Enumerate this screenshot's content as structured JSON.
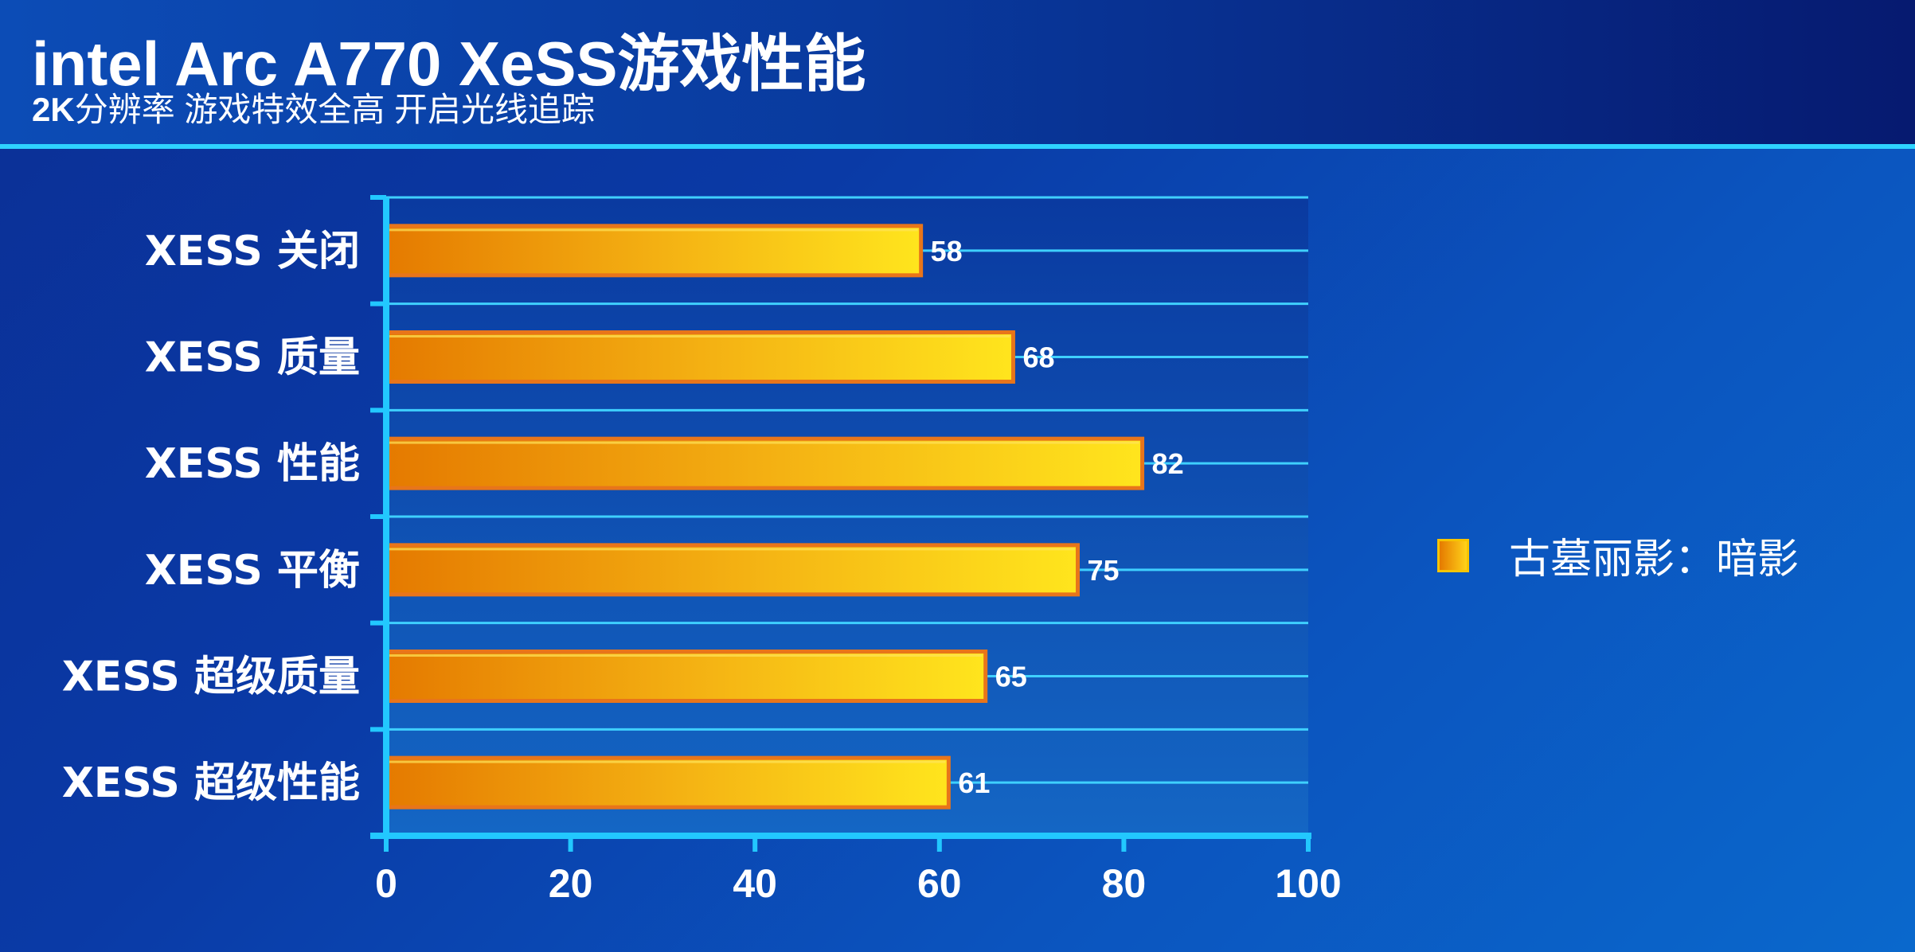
{
  "header": {
    "title": "intel Arc A770 XeSS游戏性能",
    "subtitle_bold": "2K",
    "subtitle_rest": "分辨率 游戏特效全高 开启光线追踪"
  },
  "chart_data": {
    "type": "bar",
    "orientation": "horizontal",
    "categories": [
      "XESS 关闭",
      "XESS 质量",
      "XESS 性能",
      "XESS 平衡",
      "XESS 超级质量",
      "XESS 超级性能"
    ],
    "series": [
      {
        "name": "古墓丽影：暗影",
        "values": [
          58,
          68,
          82,
          75,
          65,
          61
        ]
      }
    ],
    "xlim": [
      0,
      100
    ],
    "xticks": [
      0,
      20,
      40,
      60,
      80,
      100
    ],
    "grid": true,
    "legend_position": "right",
    "colors": {
      "bar_start": "#e57a00",
      "bar_end": "#ffe21c",
      "bar_border": "#e8751a",
      "axis": "#22c8ff",
      "grid": "#3fd0ff"
    }
  }
}
